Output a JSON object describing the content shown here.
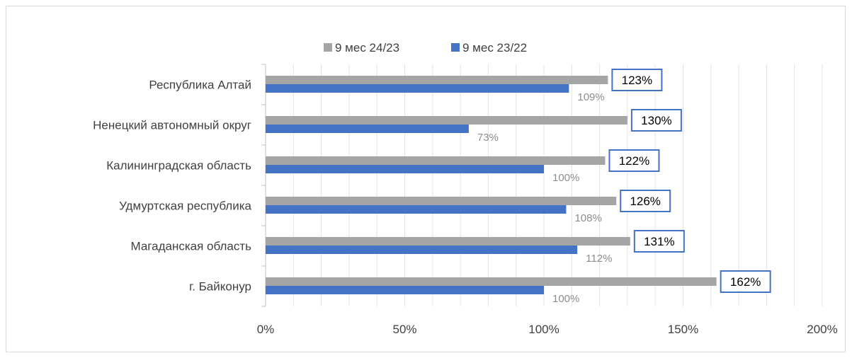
{
  "chart_data": {
    "type": "bar",
    "orientation": "horizontal",
    "categories": [
      "Республика Алтай",
      "Ненецкий автономный округ",
      "Калининградская область",
      "Удмуртская республика",
      "Магаданская область",
      "г. Байконур"
    ],
    "series": [
      {
        "name": "9 мес 24/23",
        "color": "#a5a5a5",
        "values": [
          123,
          130,
          122,
          126,
          131,
          162
        ],
        "labels": [
          "123%",
          "130%",
          "122%",
          "126%",
          "131%",
          "162%"
        ]
      },
      {
        "name": "9 мес 23/22",
        "color": "#4472c4",
        "values": [
          109,
          73,
          100,
          108,
          112,
          100
        ],
        "labels": [
          "109%",
          "73%",
          "100%",
          "108%",
          "112%",
          "100%"
        ]
      }
    ],
    "xlim": [
      0,
      200
    ],
    "xticks": [
      0,
      50,
      100,
      150,
      200
    ],
    "xtick_labels": [
      "0%",
      "50%",
      "100%",
      "150%",
      "200%"
    ],
    "grid": true,
    "legend_position": "top",
    "label_box_color": "#4472c4",
    "title": "",
    "xlabel": "",
    "ylabel": ""
  }
}
